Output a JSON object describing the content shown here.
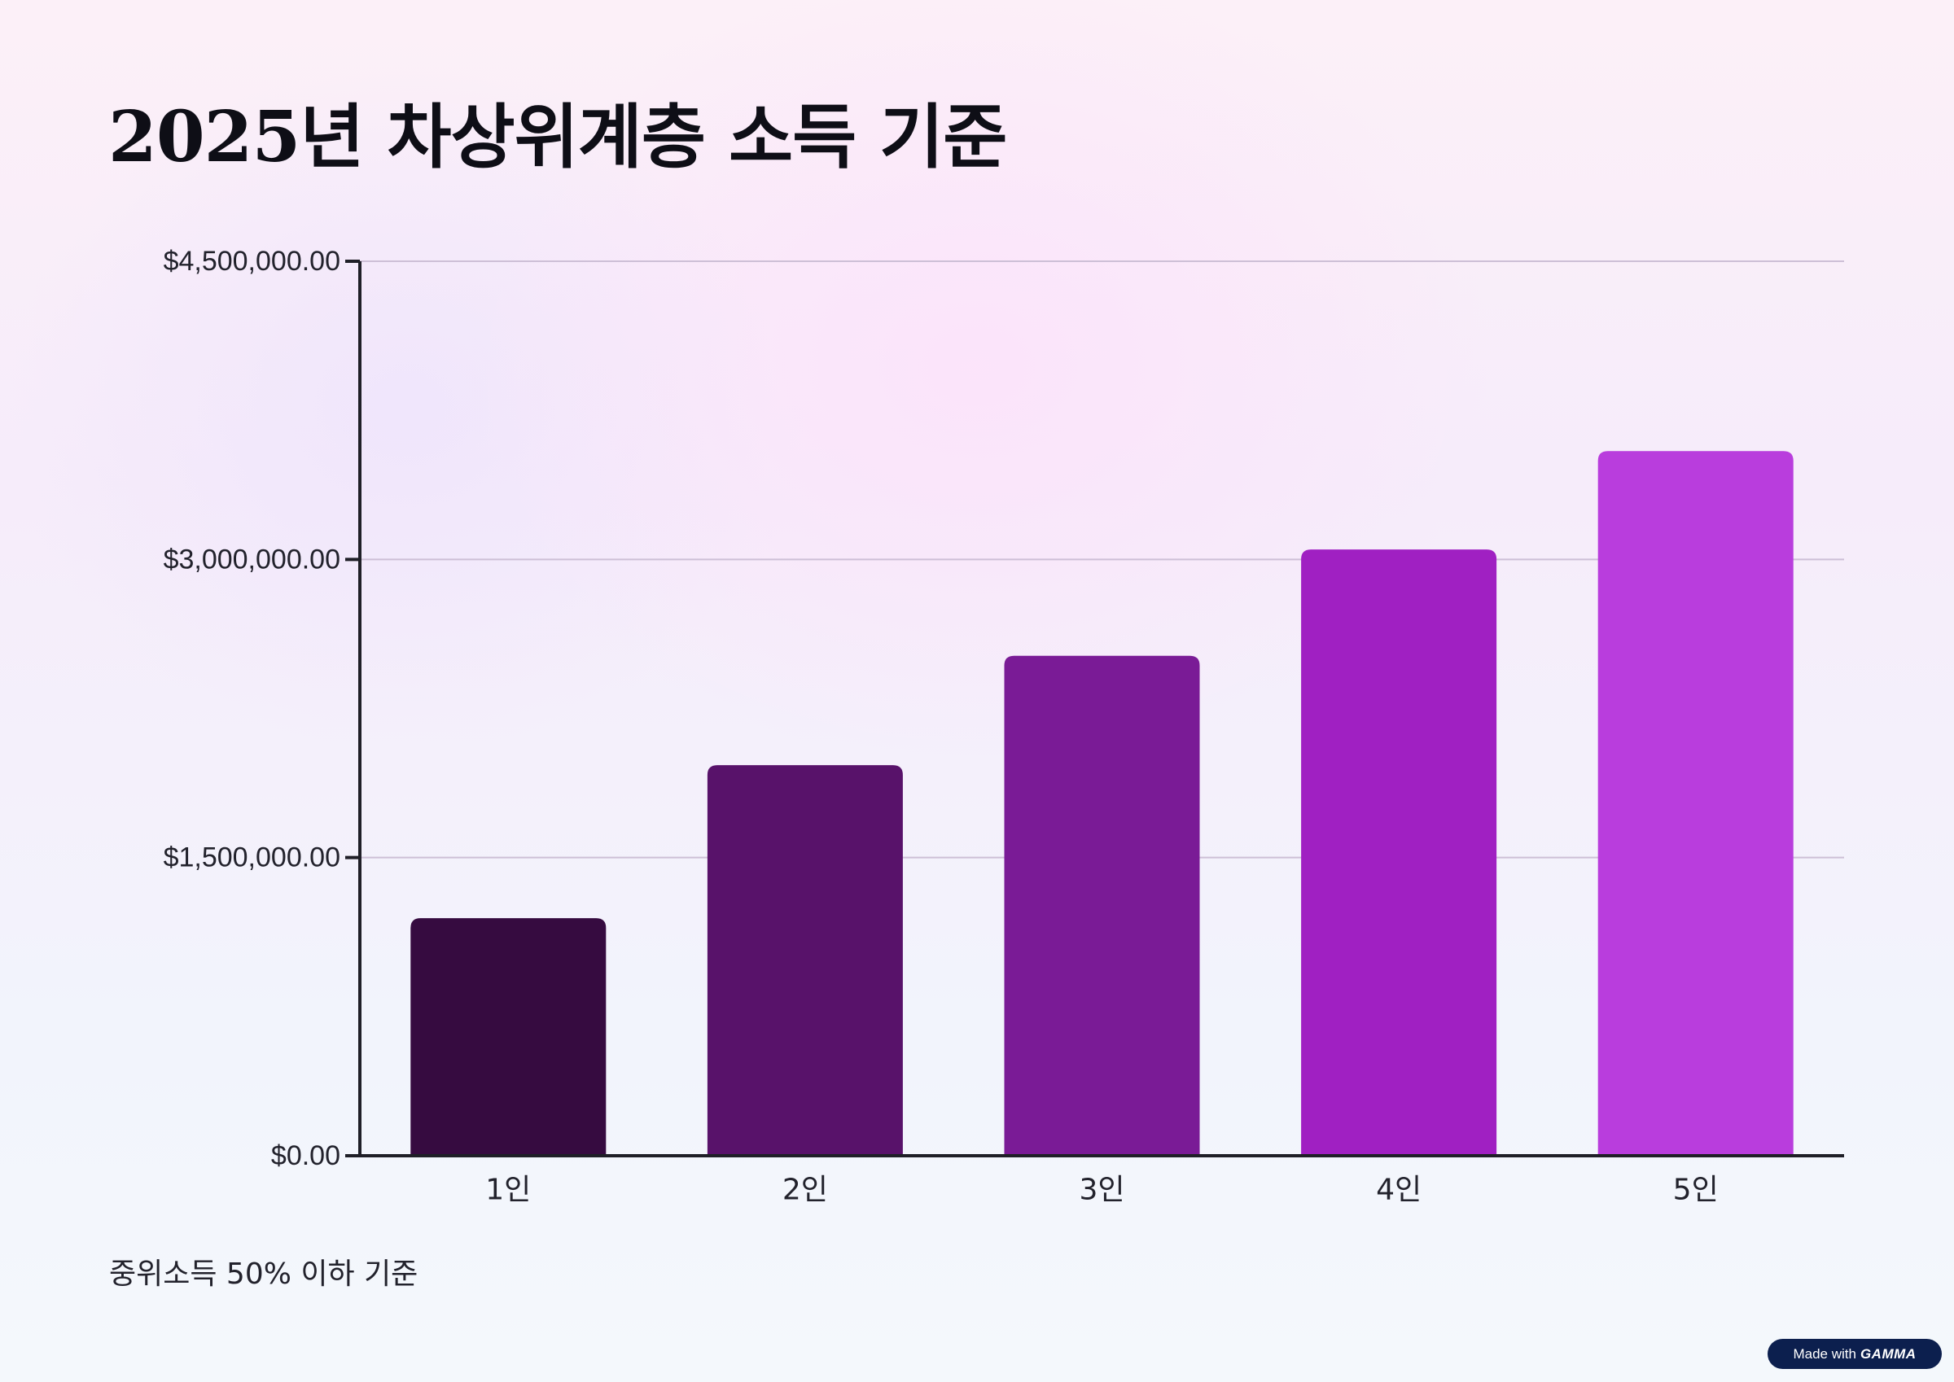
{
  "chart_data": {
    "type": "bar",
    "title": "2025년 차상위계층 소득 기준",
    "xlabel": "",
    "ylabel": "",
    "categories": [
      "1인",
      "2인",
      "3인",
      "4인",
      "5인"
    ],
    "values": [
      1195000,
      1965000,
      2515000,
      3050000,
      3545000
    ],
    "ylim": [
      0,
      4500000
    ],
    "y_ticks": [
      {
        "value": 0,
        "label": "$0.00"
      },
      {
        "value": 1500000,
        "label": "$1,500,000.00"
      },
      {
        "value": 3000000,
        "label": "$3,000,000.00"
      },
      {
        "value": 4500000,
        "label": "$4,500,000.00"
      }
    ],
    "colors": [
      "#360b40",
      "#58126a",
      "#7a1b96",
      "#a020c2",
      "#b93ddd"
    ],
    "grid": true,
    "legend": "none"
  },
  "footnote": "중위소득 50% 이하 기준",
  "badge": {
    "prefix": "Made with",
    "brand": "GAMMA"
  }
}
